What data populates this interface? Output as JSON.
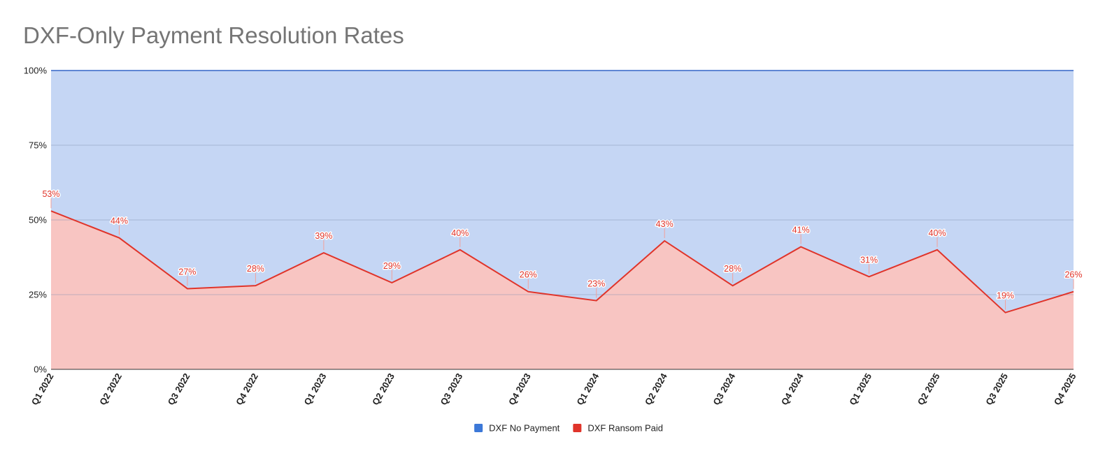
{
  "chart_data": {
    "type": "area",
    "title": "DXF-Only Payment Resolution Rates",
    "xlabel": "",
    "ylabel": "",
    "stacked_percent": true,
    "ylim": [
      0,
      100
    ],
    "y_ticks": [
      "0%",
      "25%",
      "50%",
      "75%",
      "100%"
    ],
    "grid": true,
    "legend_position": "bottom",
    "categories": [
      "Q1 2022",
      "Q2 2022",
      "Q3 2022",
      "Q4 2022",
      "Q1 2023",
      "Q2 2023",
      "Q3 2023",
      "Q4 2023",
      "Q1 2024",
      "Q2 2024",
      "Q3 2024",
      "Q4 2024",
      "Q1 2025",
      "Q2 2025",
      "Q3 2025",
      "Q4 2025"
    ],
    "series": [
      {
        "name": "DXF No Payment",
        "color": "#3c78d8",
        "fill": "#c5d6f4",
        "values": [
          47,
          56,
          73,
          72,
          61,
          71,
          60,
          74,
          77,
          57,
          72,
          59,
          69,
          60,
          81,
          74
        ]
      },
      {
        "name": "DXF Ransom Paid",
        "color": "#e0342a",
        "fill": "#f8c5c2",
        "values": [
          53,
          44,
          27,
          28,
          39,
          29,
          40,
          26,
          23,
          43,
          28,
          41,
          31,
          40,
          19,
          26
        ],
        "data_labels": [
          "53%",
          "44%",
          "27%",
          "28%",
          "39%",
          "29%",
          "40%",
          "26%",
          "23%",
          "43%",
          "28%",
          "41%",
          "31%",
          "40%",
          "19%",
          "26%"
        ]
      }
    ]
  }
}
